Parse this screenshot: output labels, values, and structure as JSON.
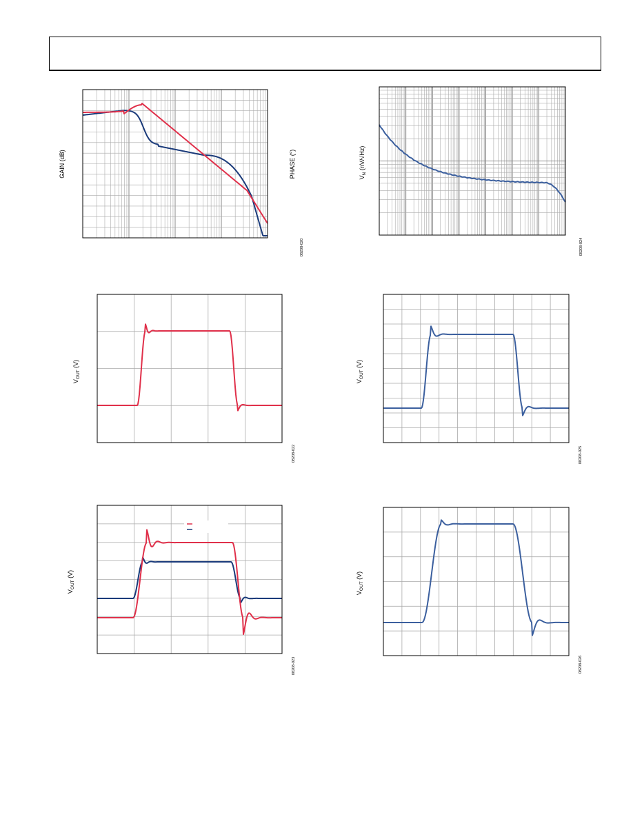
{
  "colors": {
    "red": "#e0304a",
    "blue": "#1a3a7a",
    "steel": "#3b5f9e",
    "grid": "#aaaaaa"
  },
  "figures": [
    {
      "ylabel_main": "GAIN (dB)",
      "ylabel_right": "PHASE (°)",
      "fig_id": "08208-020"
    },
    {
      "ylabel_main": "V",
      "ylabel_sub": "N",
      "ylabel_tail": " (nV/√Hz)",
      "fig_id": "08208-024"
    },
    {
      "ylabel_main": "V",
      "ylabel_sub": "OUT",
      "ylabel_tail": " (V)",
      "fig_id": "08208-022"
    },
    {
      "ylabel_main": "V",
      "ylabel_sub": "OUT",
      "ylabel_tail": " (V)",
      "fig_id": "08208-025"
    },
    {
      "ylabel_main": "V",
      "ylabel_sub": "OUT",
      "ylabel_tail": " (V)",
      "fig_id": "08208-023"
    },
    {
      "ylabel_main": "V",
      "ylabel_sub": "OUT",
      "ylabel_tail": " (V)",
      "fig_id": "08208-026"
    }
  ],
  "chart_data": [
    {
      "type": "line",
      "grid": "log-x",
      "series": [
        {
          "color": "red",
          "shape": "phase_response"
        },
        {
          "color": "blue",
          "shape": "gain_response"
        }
      ]
    },
    {
      "type": "line",
      "grid": "log-log",
      "series": [
        {
          "color": "steel",
          "shape": "voltage_noise_density"
        }
      ]
    },
    {
      "type": "line",
      "grid": "linear",
      "series": [
        {
          "color": "red",
          "shape": "pulse_response"
        }
      ]
    },
    {
      "type": "line",
      "grid": "linear",
      "series": [
        {
          "color": "steel",
          "shape": "pulse_response"
        }
      ]
    },
    {
      "type": "line",
      "grid": "linear",
      "legend": "top-center",
      "series": [
        {
          "color": "red",
          "shape": "pulse_response_large"
        },
        {
          "color": "blue",
          "shape": "pulse_response_small"
        }
      ]
    },
    {
      "type": "line",
      "grid": "linear",
      "series": [
        {
          "color": "steel",
          "shape": "pulse_response_slow"
        }
      ]
    }
  ]
}
